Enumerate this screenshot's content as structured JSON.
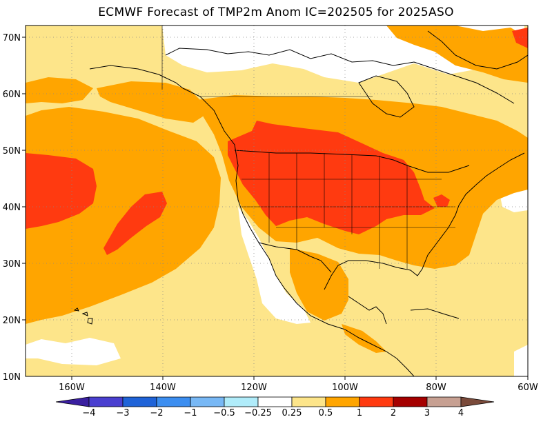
{
  "title": "ECMWF Forecast of TMP2m Anom IC=202505 for 2025ASO",
  "map": {
    "lat_labels": [
      "70N",
      "60N",
      "50N",
      "40N",
      "30N",
      "20N",
      "10N"
    ],
    "lon_labels": [
      "160W",
      "140W",
      "120W",
      "100W",
      "80W",
      "60W"
    ],
    "land_color": "#000000",
    "grid_style": "dotted"
  },
  "colorbar": {
    "labels": [
      "−4",
      "−3",
      "−2",
      "−1",
      "−0.5",
      "−0.25",
      "0.25",
      "0.5",
      "1",
      "2",
      "3",
      "4"
    ],
    "colors": [
      "#3a1fa0",
      "#4a3fd0",
      "#1f63d8",
      "#3c8ef0",
      "#78b8f5",
      "#b0ecfa",
      "#ffffff",
      "#fde58a",
      "#ffa500",
      "#ff3a10",
      "#a50000",
      "#c7a092",
      "#7a4a3a"
    ]
  }
}
